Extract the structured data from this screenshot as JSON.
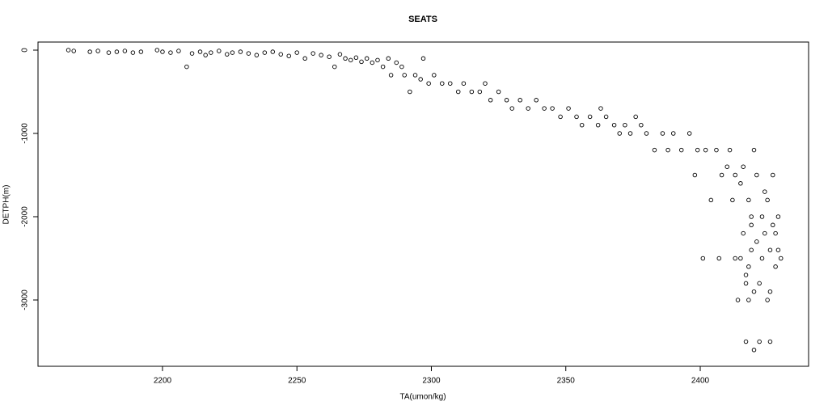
{
  "chart_data": {
    "type": "scatter",
    "title": "SEATS",
    "x_label": "TA(umon/kg)",
    "y_label": "DETPH(m)",
    "series": [
      {
        "name": null,
        "color": "#000000",
        "x": [
          2165,
          2167,
          2173,
          2176,
          2180,
          2183,
          2186,
          2189,
          2192,
          2198,
          2200,
          2203,
          2206,
          2209,
          2211,
          2214,
          2216,
          2218,
          2221,
          2224,
          2226,
          2229,
          2232,
          2235,
          2238,
          2241,
          2244,
          2247,
          2250,
          2253,
          2256,
          2259,
          2262,
          2264,
          2266,
          2268,
          2270,
          2272,
          2274,
          2276,
          2278,
          2280,
          2282,
          2284,
          2285,
          2287,
          2289,
          2290,
          2292,
          2294,
          2296,
          2297,
          2299,
          2301,
          2304,
          2307,
          2310,
          2312,
          2315,
          2318,
          2320,
          2322,
          2325,
          2328,
          2330,
          2333,
          2336,
          2339,
          2342,
          2345,
          2348,
          2351,
          2354,
          2356,
          2359,
          2362,
          2363,
          2365,
          2368,
          2370,
          2372,
          2374,
          2376,
          2378,
          2380,
          2383,
          2386,
          2388,
          2390,
          2393,
          2396,
          2398,
          2399,
          2401,
          2402,
          2404,
          2406,
          2407,
          2408,
          2410,
          2411,
          2412,
          2413,
          2414,
          2415,
          2415,
          2416,
          2416,
          2417,
          2417,
          2418,
          2418,
          2418,
          2419,
          2419,
          2420,
          2420,
          2420,
          2421,
          2421,
          2422,
          2422,
          2423,
          2423,
          2424,
          2424,
          2425,
          2425,
          2426,
          2426,
          2427,
          2427,
          2428,
          2429,
          2429,
          2430,
          2428,
          2426,
          2419,
          2413,
          2417
        ],
        "values": [
          0,
          -10,
          -20,
          -10,
          -30,
          -20,
          -10,
          -30,
          -20,
          0,
          -20,
          -30,
          -10,
          -200,
          -40,
          -20,
          -60,
          -30,
          -10,
          -50,
          -30,
          -20,
          -40,
          -60,
          -30,
          -20,
          -50,
          -70,
          -30,
          -100,
          -40,
          -60,
          -80,
          -200,
          -50,
          -100,
          -120,
          -90,
          -140,
          -100,
          -150,
          -120,
          -200,
          -100,
          -300,
          -150,
          -200,
          -300,
          -500,
          -300,
          -350,
          -100,
          -400,
          -300,
          -400,
          -400,
          -500,
          -400,
          -500,
          -500,
          -400,
          -600,
          -500,
          -600,
          -700,
          -600,
          -700,
          -600,
          -700,
          -700,
          -800,
          -700,
          -800,
          -900,
          -800,
          -900,
          -700,
          -800,
          -900,
          -1000,
          -900,
          -1000,
          -800,
          -900,
          -1000,
          -1200,
          -1000,
          -1200,
          -1000,
          -1200,
          -1000,
          -1500,
          -1200,
          -2500,
          -1200,
          -1800,
          -1200,
          -2500,
          -1500,
          -1400,
          -1200,
          -1800,
          -1500,
          -3000,
          -1600,
          -2500,
          -1400,
          -2200,
          -2700,
          -3500,
          -1800,
          -2600,
          -3000,
          -2000,
          -2400,
          -3600,
          -1200,
          -2900,
          -1500,
          -2300,
          -2800,
          -3500,
          -2000,
          -2500,
          -1700,
          -2200,
          -3000,
          -1800,
          -2400,
          -3500,
          -1500,
          -2100,
          -2600,
          -2000,
          -2400,
          -2500,
          -2200,
          -2900,
          -2100,
          -2500,
          -2800
        ]
      }
    ],
    "xlim": [
      2153.7,
      2440.3
    ],
    "ylim": [
      -3796,
      97
    ],
    "xticks": [
      2200,
      2250,
      2300,
      2350,
      2400
    ],
    "yticks": [
      0,
      -1000,
      -2000,
      -3000
    ],
    "grid": false
  }
}
